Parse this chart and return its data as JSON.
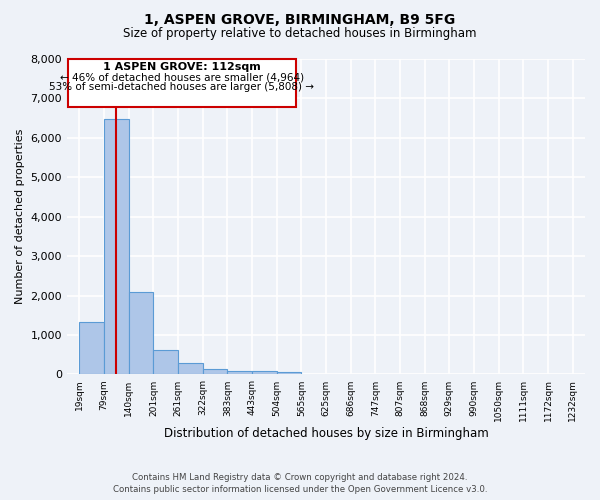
{
  "title": "1, ASPEN GROVE, BIRMINGHAM, B9 5FG",
  "subtitle": "Size of property relative to detached houses in Birmingham",
  "xlabel": "Distribution of detached houses by size in Birmingham",
  "ylabel": "Number of detached properties",
  "bin_labels": [
    "19sqm",
    "79sqm",
    "140sqm",
    "201sqm",
    "261sqm",
    "322sqm",
    "383sqm",
    "443sqm",
    "504sqm",
    "565sqm",
    "625sqm",
    "686sqm",
    "747sqm",
    "807sqm",
    "868sqm",
    "929sqm",
    "990sqm",
    "1050sqm",
    "1111sqm",
    "1172sqm",
    "1232sqm"
  ],
  "bar_values": [
    1320,
    6490,
    2080,
    620,
    290,
    130,
    80,
    80,
    70,
    0,
    0,
    0,
    0,
    0,
    0,
    0,
    0,
    0,
    0,
    0
  ],
  "bar_color": "#aec6e8",
  "bar_edge_color": "#5b9bd5",
  "vline_color": "#cc0000",
  "ylim": [
    0,
    8000
  ],
  "yticks": [
    0,
    1000,
    2000,
    3000,
    4000,
    5000,
    6000,
    7000,
    8000
  ],
  "annotation_title": "1 ASPEN GROVE: 112sqm",
  "annotation_line1": "← 46% of detached houses are smaller (4,964)",
  "annotation_line2": "53% of semi-detached houses are larger (5,808) →",
  "annotation_box_color": "#cc0000",
  "footer_line1": "Contains HM Land Registry data © Crown copyright and database right 2024.",
  "footer_line2": "Contains public sector information licensed under the Open Government Licence v3.0.",
  "background_color": "#eef2f8",
  "grid_color": "#ffffff"
}
